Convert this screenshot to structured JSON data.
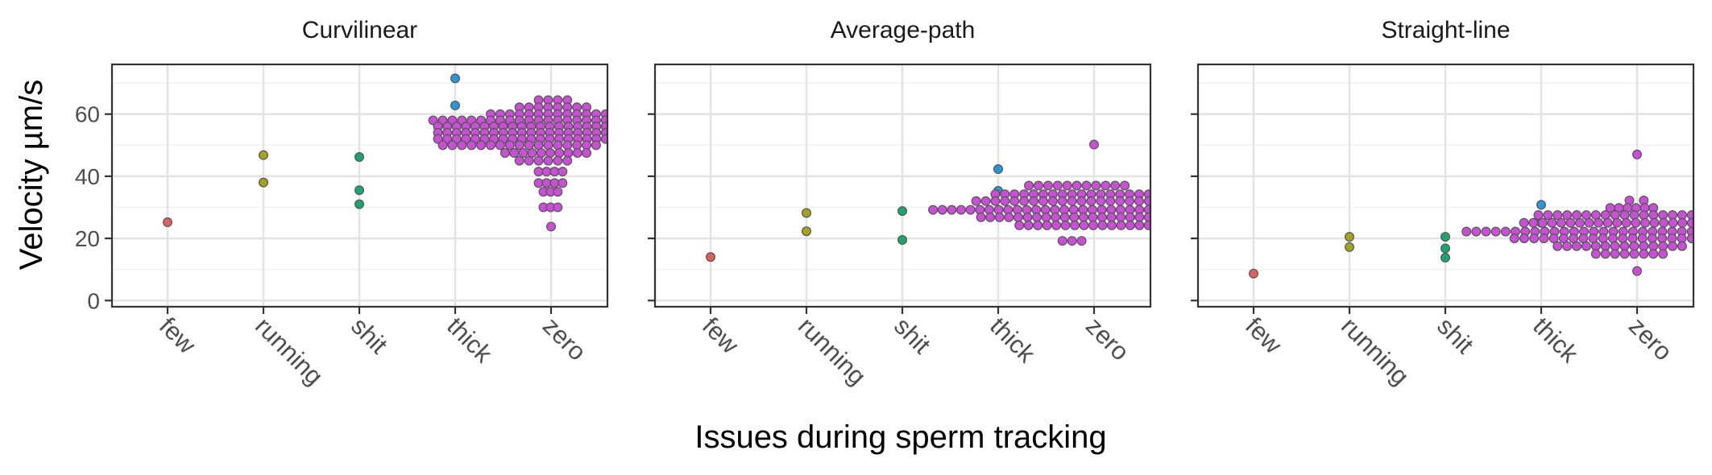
{
  "chart_data": {
    "type": "scatter",
    "subtype": "faceted dot plot (beeswarm)",
    "xlabel": "Issues during sperm tracking",
    "ylabel": "Velocity µm/s",
    "categories": [
      "few",
      "running",
      "shit",
      "thick",
      "zero"
    ],
    "ylim": [
      -2,
      76
    ],
    "yticks": [
      0,
      20,
      40,
      60
    ],
    "grid": true,
    "legend": "none",
    "colors": {
      "few": "#e06060",
      "running": "#a5a21d",
      "shit": "#1da571",
      "thick": "#2a96d8",
      "zero": "#c94fd6",
      "point_outline": "#555555",
      "panel_border": "#333333",
      "grid_major": "#e3e3e3",
      "grid_minor": "#f1f1f1"
    },
    "facets": [
      {
        "title": "Curvilinear",
        "points": {
          "few": [
            25.2
          ],
          "running": [
            38,
            46.8
          ],
          "shit": [
            31,
            35.5,
            46.2
          ],
          "thick": [
            62.8,
            71.5
          ]
        },
        "zero_rows": [
          {
            "y": 64.5,
            "x0": 4.87,
            "x1": 5.17
          },
          {
            "y": 62.2,
            "x0": 4.67,
            "x1": 5.37
          },
          {
            "y": 60.0,
            "x0": 4.37,
            "x1": 5.57
          },
          {
            "y": 58.0,
            "x0": 3.77,
            "x1": 5.57
          },
          {
            "y": 56.0,
            "x0": 3.82,
            "x1": 5.57
          },
          {
            "y": 54.0,
            "x0": 3.82,
            "x1": 5.57
          },
          {
            "y": 52.0,
            "x0": 3.82,
            "x1": 5.57
          },
          {
            "y": 50.0,
            "x0": 3.87,
            "x1": 5.47
          },
          {
            "y": 47.5,
            "x0": 4.52,
            "x1": 5.37
          },
          {
            "y": 45.0,
            "x0": 4.67,
            "x1": 5.17
          },
          {
            "y": 41.5,
            "x0": 4.87,
            "x1": 5.12
          },
          {
            "y": 37.8,
            "x0": 4.87,
            "x1": 5.12
          },
          {
            "y": 35.0,
            "x0": 4.92,
            "x1": 5.07
          },
          {
            "y": 30.0,
            "x0": 4.92,
            "x1": 5.07
          },
          {
            "y": 23.8,
            "x0": 5.0,
            "x1": 5.0
          }
        ]
      },
      {
        "title": "Average-path",
        "points": {
          "few": [
            14
          ],
          "running": [
            22.3,
            28.2
          ],
          "shit": [
            19.5,
            28.8
          ],
          "thick": [
            35.3,
            42.3
          ]
        },
        "zero_rows": [
          {
            "y": 50.2,
            "x0": 5.0,
            "x1": 5.0
          },
          {
            "y": 37.0,
            "x0": 4.32,
            "x1": 5.32
          },
          {
            "y": 34.2,
            "x0": 3.97,
            "x1": 5.57
          },
          {
            "y": 32.0,
            "x0": 3.77,
            "x1": 5.57
          },
          {
            "y": 29.2,
            "x0": 3.32,
            "x1": 5.57
          },
          {
            "y": 26.8,
            "x0": 3.82,
            "x1": 5.57
          },
          {
            "y": 24.2,
            "x0": 4.22,
            "x1": 5.57
          },
          {
            "y": 19.2,
            "x0": 4.67,
            "x1": 4.87
          }
        ]
      },
      {
        "title": "Straight-line",
        "points": {
          "few": [
            8.7
          ],
          "running": [
            17.2,
            20.5
          ],
          "shit": [
            13.8,
            16.8,
            20.5
          ],
          "thick": [
            25,
            30.8
          ]
        },
        "zero_rows": [
          {
            "y": 47.0,
            "x0": 5.0,
            "x1": 5.0
          },
          {
            "y": 32.2,
            "x0": 4.92,
            "x1": 5.07
          },
          {
            "y": 29.8,
            "x0": 4.72,
            "x1": 5.17
          },
          {
            "y": 27.5,
            "x0": 3.97,
            "x1": 5.57
          },
          {
            "y": 25.0,
            "x0": 3.82,
            "x1": 5.57
          },
          {
            "y": 22.2,
            "x0": 3.22,
            "x1": 5.57
          },
          {
            "y": 20.0,
            "x0": 3.72,
            "x1": 5.57
          },
          {
            "y": 17.5,
            "x0": 4.17,
            "x1": 5.47
          },
          {
            "y": 15.0,
            "x0": 4.57,
            "x1": 5.27
          },
          {
            "y": 9.5,
            "x0": 5.0,
            "x1": 5.0
          }
        ]
      }
    ]
  }
}
